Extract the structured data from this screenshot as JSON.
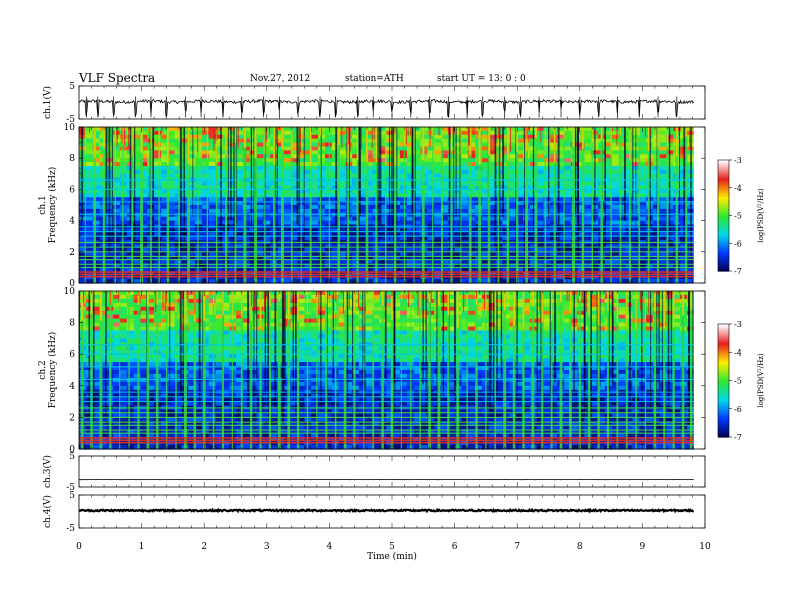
{
  "header": {
    "title": "VLF  Spectra",
    "date": "Nov.27, 2012",
    "station": "station=ATH",
    "start": "start  UT  =   13: 0  : 0"
  },
  "chart_data": [
    {
      "type": "line",
      "panel": "ch1-waveform",
      "ylabel": "ch.1(V)",
      "ylim": [
        -5,
        5
      ],
      "yticks": [
        "5",
        "-5"
      ],
      "xlim": [
        0,
        10
      ],
      "x_end": 9.82,
      "baseline": 0.3,
      "dips": [
        0.12,
        0.3,
        0.55,
        0.9,
        1.15,
        1.4,
        1.7,
        1.95,
        2.3,
        2.6,
        2.95,
        3.2,
        3.5,
        3.85,
        4.1,
        4.45,
        4.7,
        5.0,
        5.3,
        5.6,
        5.9,
        6.2,
        6.45,
        6.8,
        7.05,
        7.35,
        7.7,
        8.0,
        8.3,
        8.6,
        8.95,
        9.25,
        9.55
      ]
    },
    {
      "type": "heatmap",
      "panel": "ch1-spectrogram",
      "ylabel": "ch.1\nFrequency  (kHz)",
      "ylabel_lines": [
        "ch.1",
        "Frequency  (kHz)"
      ],
      "ylim": [
        0,
        10
      ],
      "yticks": [
        "0",
        "2",
        "4",
        "6",
        "8",
        "10"
      ],
      "xlim": [
        0,
        10
      ],
      "x_end": 9.82,
      "colorbar": {
        "label": "log(PSD(V²/Hz)",
        "range": [
          -7,
          -3
        ],
        "ticks": [
          "-3",
          "-4",
          "-5",
          "-6",
          "-7"
        ],
        "colors": [
          "#ffffff",
          "#e82020",
          "#ffee00",
          "#30e830",
          "#00d8e8",
          "#0038ff",
          "#00004a"
        ]
      },
      "line_freqs_khz": [
        0.4,
        0.55,
        0.7,
        1.0,
        1.2,
        1.5,
        1.7,
        2.0,
        2.3,
        2.6,
        3.0,
        3.3,
        3.6,
        4.4,
        5.2,
        6.0,
        6.6
      ],
      "sferic_times_min": [
        0.1,
        0.25,
        0.4,
        0.58,
        0.7,
        0.85,
        1.0,
        1.15,
        1.28,
        1.42,
        1.6,
        1.75,
        1.9,
        2.05,
        2.2,
        2.35,
        2.5,
        2.65,
        2.82,
        2.97,
        3.12,
        3.25,
        3.4,
        3.55,
        3.7,
        3.86,
        4.0,
        4.15,
        4.3,
        4.45,
        4.6,
        4.75,
        4.9,
        5.05,
        5.2,
        5.35,
        5.5,
        5.65,
        5.8,
        5.95,
        6.1,
        6.25,
        6.4,
        6.55,
        6.7,
        6.85,
        7.0,
        7.15,
        7.3,
        7.45,
        7.6,
        7.75,
        7.9,
        8.05,
        8.2,
        8.35,
        8.5,
        8.65,
        8.8,
        8.95,
        9.1,
        9.25,
        9.4,
        9.55,
        9.7
      ]
    },
    {
      "type": "heatmap",
      "panel": "ch2-spectrogram",
      "ylabel": "ch.2\nFrequency  (kHz)",
      "ylabel_lines": [
        "ch.2",
        "Frequency  (kHz)"
      ],
      "ylim": [
        0,
        10
      ],
      "yticks": [
        "0",
        "2",
        "4",
        "6",
        "8",
        "10"
      ],
      "xlim": [
        0,
        10
      ],
      "x_end": 9.82,
      "colorbar": {
        "label": "log(PSD(V²/Hz)",
        "range": [
          -7,
          -3
        ],
        "ticks": [
          "-3",
          "-4",
          "-5",
          "-6",
          "-7"
        ],
        "colors": [
          "#ffffff",
          "#e82020",
          "#ffee00",
          "#30e830",
          "#00d8e8",
          "#0038ff",
          "#00004a"
        ]
      },
      "line_freqs_khz": [
        0.4,
        0.55,
        0.7,
        1.0,
        1.2,
        1.5,
        1.7,
        2.0,
        2.3,
        2.6,
        3.0,
        3.3,
        3.6,
        4.4,
        5.2,
        6.0,
        6.6
      ],
      "sferic_times_min": [
        0.05,
        0.2,
        0.35,
        0.5,
        0.65,
        0.8,
        0.95,
        1.1,
        1.25,
        1.4,
        1.55,
        1.7,
        1.85,
        2.0,
        2.15,
        2.3,
        2.45,
        2.6,
        2.75,
        2.9,
        3.05,
        3.2,
        3.35,
        3.5,
        3.65,
        3.8,
        3.95,
        4.1,
        4.25,
        4.4,
        4.55,
        4.7,
        4.85,
        5.0,
        5.15,
        5.3,
        5.45,
        5.6,
        5.75,
        5.9,
        6.05,
        6.2,
        6.35,
        6.5,
        6.65,
        6.8,
        6.95,
        7.1,
        7.25,
        7.4,
        7.55,
        7.7,
        7.85,
        8.0,
        8.15,
        8.3,
        8.45,
        8.6,
        8.75,
        8.9,
        9.05,
        9.2,
        9.35,
        9.5,
        9.65,
        9.78
      ]
    },
    {
      "type": "line",
      "panel": "ch3-waveform",
      "ylabel": "ch.3(V)",
      "ylim": [
        -5,
        5
      ],
      "yticks": [
        "5",
        "-5"
      ],
      "xlim": [
        0,
        10
      ],
      "x_end": 9.82,
      "baseline": -2.6,
      "dips": []
    },
    {
      "type": "line",
      "panel": "ch4-waveform",
      "ylabel": "ch.4(V)",
      "ylim": [
        -5,
        5
      ],
      "yticks": [
        "5",
        "-5"
      ],
      "xlim": [
        0,
        10
      ],
      "x_end": 9.82,
      "baseline": 0.3,
      "dips": []
    }
  ],
  "x_axis": {
    "label": "Time  (min)",
    "ticks": [
      "0",
      "1",
      "2",
      "3",
      "4",
      "5",
      "6",
      "7",
      "8",
      "9",
      "10"
    ]
  }
}
